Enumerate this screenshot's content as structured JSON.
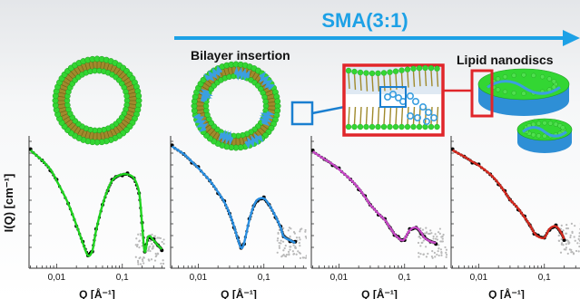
{
  "figure": {
    "arrow_label": "SMA(3:1)",
    "stage_labels": [
      "Bilayer insertion",
      "Lipid nanodiscs"
    ],
    "y_axis_label": "I(Q) [cm⁻¹]",
    "colors": {
      "background_top": "#e9eaec",
      "arrow": "#1da1e6",
      "lipid_head": "#33d633",
      "lipid_tail": "#a08a2c",
      "sma_polymer": "#3b9fe0",
      "zoom_frame": "#e0262a",
      "zoom_inner_frame": "#1a7fd0",
      "data_points": "#000000",
      "error_cloud": "#b9b9b9"
    }
  },
  "chart_data": [
    {
      "type": "scatter",
      "panel": 1,
      "xscale": "log",
      "x_tick_labels": [
        "0,01",
        "0,1"
      ],
      "xlabel": "Q [Å⁻¹]",
      "ylabel": "I(Q) [cm⁻¹]",
      "fit_color": "#1fd21f",
      "series": [
        {
          "x": [
            0.004,
            0.006,
            0.008,
            0.01,
            0.015,
            0.02,
            0.025,
            0.03,
            0.035,
            0.04,
            0.05,
            0.06,
            0.07,
            0.08,
            0.1,
            0.12,
            0.15,
            0.18,
            0.2,
            0.22,
            0.25,
            0.3,
            0.35,
            0.4
          ],
          "y": [
            0.93,
            0.85,
            0.78,
            0.69,
            0.51,
            0.34,
            0.2,
            0.1,
            0.14,
            0.3,
            0.5,
            0.62,
            0.69,
            0.72,
            0.74,
            0.74,
            0.71,
            0.6,
            0.35,
            0.13,
            0.25,
            0.22,
            0.18,
            0.15
          ]
        }
      ]
    },
    {
      "type": "scatter",
      "panel": 2,
      "xscale": "log",
      "x_tick_labels": [
        "0,01",
        "0,1"
      ],
      "xlabel": "Q [Å⁻¹]",
      "fit_color": "#2a8ee0",
      "series": [
        {
          "x": [
            0.004,
            0.006,
            0.008,
            0.01,
            0.015,
            0.02,
            0.025,
            0.03,
            0.035,
            0.04,
            0.045,
            0.05,
            0.06,
            0.07,
            0.08,
            0.1,
            0.12,
            0.15,
            0.18,
            0.2,
            0.25,
            0.3
          ],
          "y": [
            0.96,
            0.9,
            0.84,
            0.79,
            0.69,
            0.6,
            0.52,
            0.43,
            0.33,
            0.23,
            0.16,
            0.2,
            0.38,
            0.49,
            0.54,
            0.55,
            0.5,
            0.41,
            0.32,
            0.25,
            0.22,
            0.2
          ]
        }
      ]
    },
    {
      "type": "scatter",
      "panel": 3,
      "xscale": "log",
      "x_tick_labels": [
        "0,01",
        "0,1"
      ],
      "xlabel": "Q [Å⁻¹]",
      "fit_color": "#c547c5",
      "series": [
        {
          "x": [
            0.004,
            0.006,
            0.008,
            0.01,
            0.015,
            0.02,
            0.025,
            0.03,
            0.04,
            0.05,
            0.06,
            0.07,
            0.08,
            0.09,
            0.1,
            0.12,
            0.15,
            0.18,
            0.2,
            0.25,
            0.3
          ],
          "y": [
            0.92,
            0.86,
            0.82,
            0.78,
            0.7,
            0.63,
            0.56,
            0.5,
            0.43,
            0.38,
            0.32,
            0.27,
            0.24,
            0.22,
            0.23,
            0.3,
            0.32,
            0.28,
            0.24,
            0.21,
            0.2
          ]
        }
      ]
    },
    {
      "type": "scatter",
      "panel": 4,
      "xscale": "log",
      "x_tick_labels": [
        "0,01",
        "0,1"
      ],
      "xlabel": "Q [Å⁻¹]",
      "fit_color": "#d42a1f",
      "series": [
        {
          "x": [
            0.004,
            0.006,
            0.008,
            0.01,
            0.015,
            0.02,
            0.025,
            0.03,
            0.04,
            0.05,
            0.06,
            0.07,
            0.08,
            0.1,
            0.12,
            0.15,
            0.18,
            0.2
          ],
          "y": [
            0.93,
            0.88,
            0.84,
            0.81,
            0.74,
            0.67,
            0.6,
            0.54,
            0.47,
            0.4,
            0.34,
            0.28,
            0.25,
            0.24,
            0.31,
            0.33,
            0.28,
            0.23
          ]
        }
      ]
    }
  ]
}
